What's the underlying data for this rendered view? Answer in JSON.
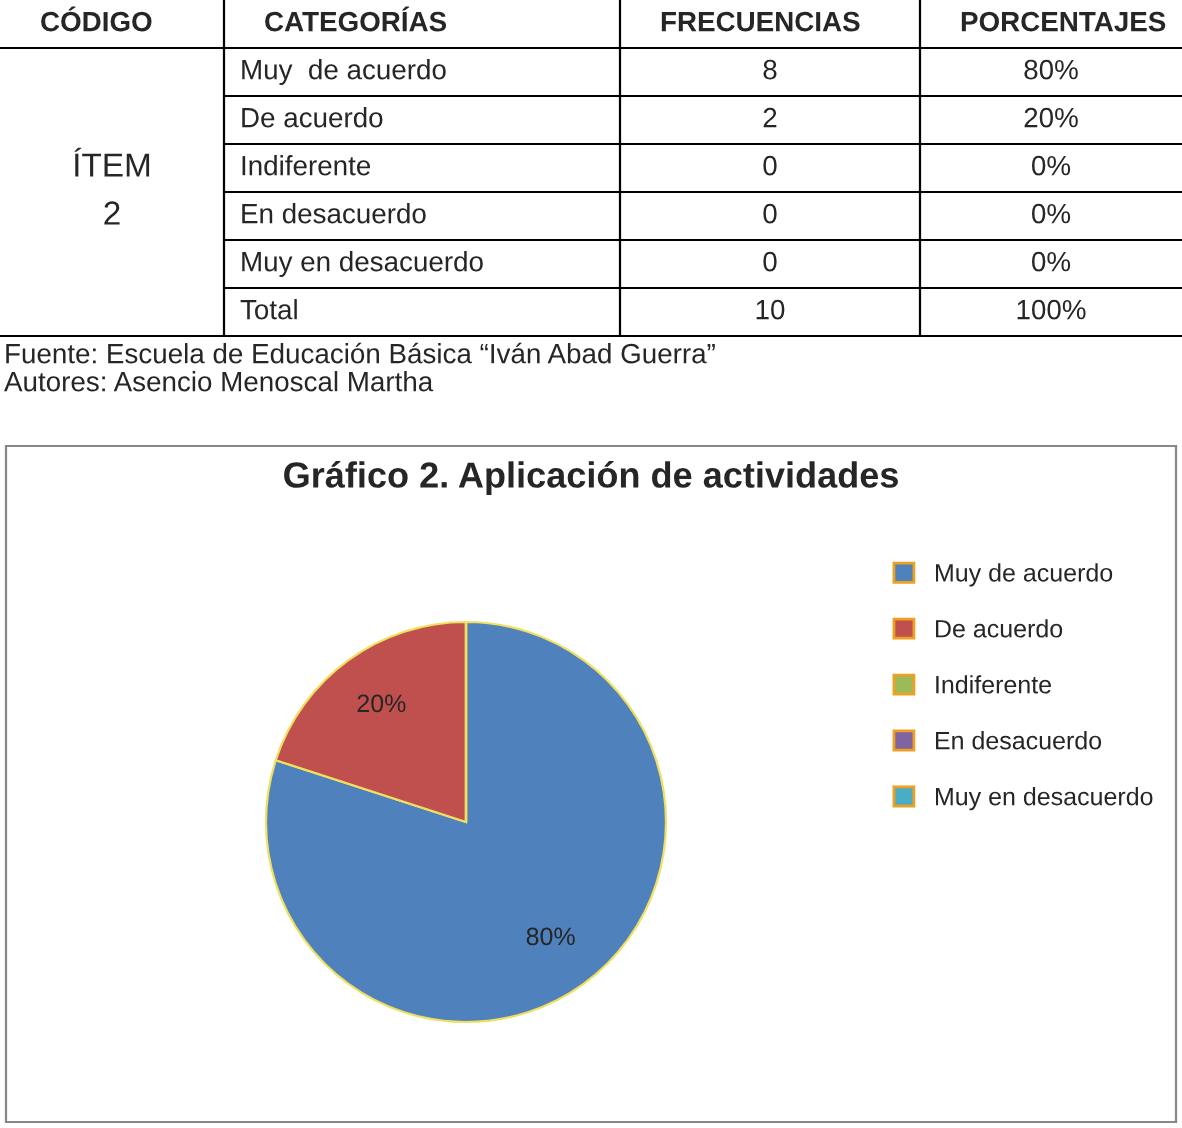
{
  "chart_data": [
    {
      "type": "other",
      "annotations": [
        "CÓDIGO",
        "CATEGORÍAS",
        "FRECUENCIAS",
        "PORCENTAJES",
        "ÍTEM",
        "2",
        "Muy  de acuerdo",
        "8",
        "80%",
        "De acuerdo",
        "2",
        "20%",
        "Indiferente",
        "0",
        "0%",
        "En desacuerdo",
        "0",
        "0%",
        "Muy en desacuerdo",
        "0",
        "0%",
        "Total",
        "10",
        "100%",
        "Fuente: Escuela de Educación Básica “Iván Abad Guerra”",
        "Autores: Asencio Menoscal Martha"
      ]
    },
    {
      "type": "pie",
      "title": "Gráfico 2. Aplicación de actividades",
      "categories": [
        "Muy de acuerdo",
        "De acuerdo",
        "Indiferente",
        "En desacuerdo",
        "Muy en desacuerdo"
      ],
      "values": [
        80,
        20,
        0,
        0,
        0
      ],
      "colors": [
        "#4f81bd",
        "#c0504d",
        "#9bbb59",
        "#8064a2",
        "#4bacc6"
      ],
      "value_labels": [
        "80%",
        "20%",
        null,
        null,
        null
      ],
      "legend": "top right"
    }
  ]
}
